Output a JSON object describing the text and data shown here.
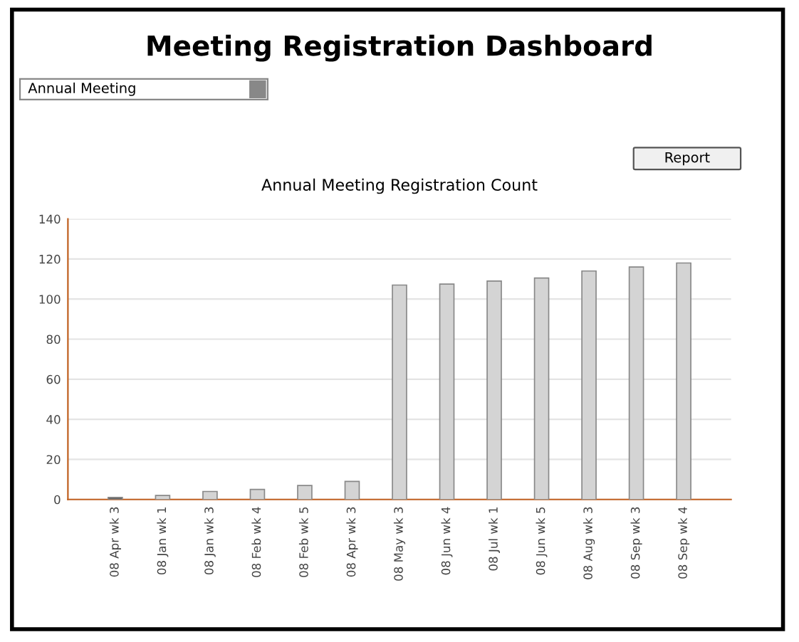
{
  "chart_data": {
    "type": "bar",
    "title": "Meeting Registration Dashboard",
    "subtitle": "Annual Meeting Registration Count",
    "annotations": [
      "Annual Meeting",
      "Report"
    ],
    "categories": [
      "08 Apr wk 3",
      "08 Jan wk 1",
      "08 Jan wk 3",
      "08 Feb wk 4",
      "08 Feb wk 5",
      "08 Apr wk 3",
      "08 May wk 3",
      "08 Jun wk 4",
      "08 Jul wk 1",
      "08 Jun wk 5",
      "08 Aug wk 3",
      "08 Sep wk 3",
      "08 Sep wk 4"
    ],
    "values": [
      1,
      2,
      4,
      5,
      7,
      9,
      107,
      107.5,
      109,
      110.5,
      114,
      116,
      118
    ],
    "colors": [
      "#606060",
      "#d4d4d4",
      "#d4d4d4",
      "#d4d4d4",
      "#d4d4d4",
      "#d4d4d4",
      "#d4d4d4",
      "#d4d4d4",
      "#d4d4d4",
      "#d4d4d4",
      "#d4d4d4",
      "#d4d4d4",
      "#d4d4d4"
    ],
    "ylim": [
      0,
      140
    ],
    "yticks": [
      0,
      20,
      40,
      60,
      80,
      100,
      120,
      140
    ],
    "grid": "y"
  }
}
